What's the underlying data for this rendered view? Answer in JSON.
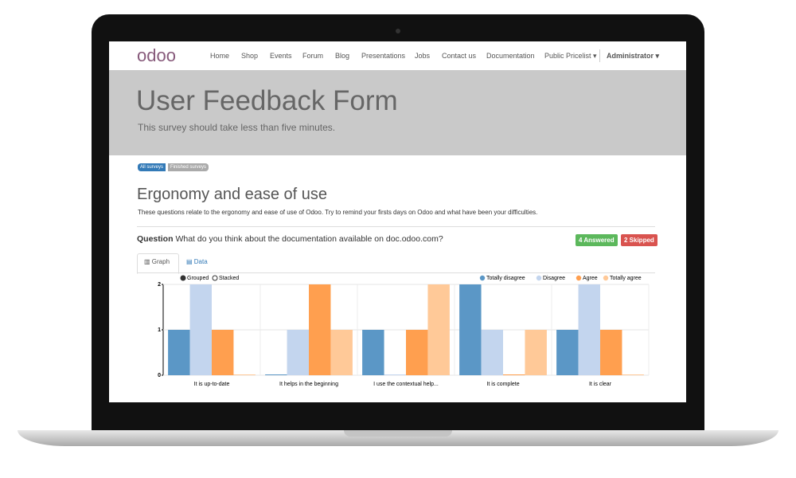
{
  "nav": {
    "logo": "odoo",
    "items": [
      "Home",
      "Shop",
      "Events",
      "Forum",
      "Blog",
      "Presentations",
      "Jobs",
      "Contact us",
      "Documentation",
      "Public Pricelist"
    ],
    "user": "Administrator"
  },
  "header": {
    "title": "User Feedback Form",
    "subtitle": "This survey should take less than five minutes."
  },
  "breadcrumbs": [
    "All surveys",
    "Finished surveys"
  ],
  "section": {
    "title": "Ergonomy and ease of use",
    "description": "These questions relate to the ergonomy and ease of use of Odoo. Try to remind your firsts days on Odoo and what have been your difficulties."
  },
  "question": {
    "label": "Question",
    "text": "What do you think about the documentation available on doc.odoo.com?"
  },
  "badges": {
    "answered": "4 Answered",
    "skipped": "2 Skipped"
  },
  "tabs": [
    "Graph",
    "Data"
  ],
  "chart_controls": [
    "Grouped",
    "Stacked"
  ],
  "chart_data": {
    "type": "bar",
    "categories": [
      "It is up-to-date",
      "It helps in the beginning",
      "I use the contextual help...",
      "It is complete",
      "It is clear"
    ],
    "series": [
      {
        "name": "Totally disagree",
        "color": "#5b97c6",
        "values": [
          1,
          0,
          1,
          2,
          1
        ]
      },
      {
        "name": "Disagree",
        "color": "#c3d5ee",
        "values": [
          2,
          1,
          0,
          1,
          2
        ]
      },
      {
        "name": "Agree",
        "color": "#ff9f4f",
        "values": [
          1,
          2,
          1,
          0,
          1
        ]
      },
      {
        "name": "Totally agree",
        "color": "#ffc998",
        "values": [
          0,
          1,
          2,
          1,
          0
        ]
      }
    ],
    "ylim": [
      0,
      2
    ],
    "yticks": [
      0,
      1,
      2
    ],
    "grid": true
  }
}
